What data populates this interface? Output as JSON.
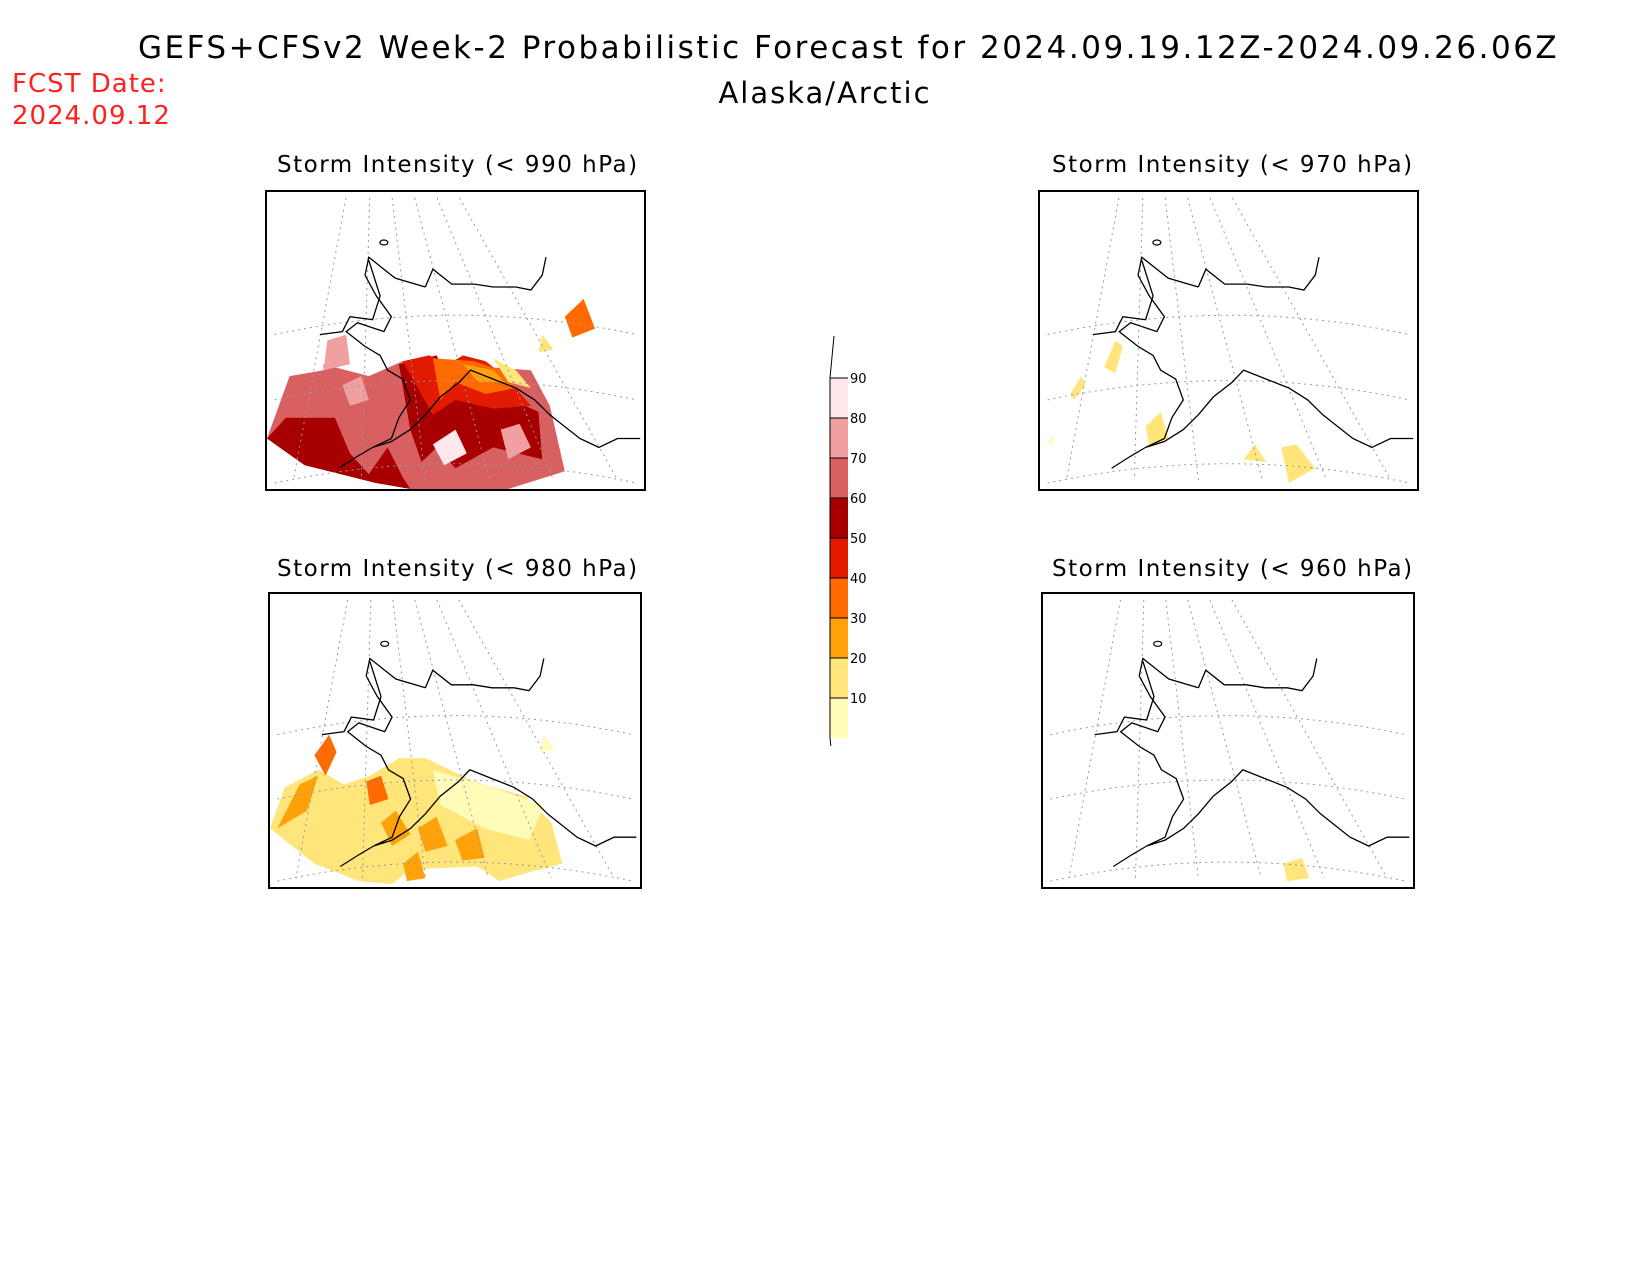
{
  "header": {
    "title": "GEFS+CFSv2 Week-2 Probabilistic Forecast for 2024.09.19.12Z-2024.09.26.06Z",
    "region": "Alaska/Arctic",
    "fcst_label": "FCST Date:",
    "fcst_date": "2024.09.12"
  },
  "panels": [
    {
      "id": "p990",
      "title": "Storm Intensity (< 990 hPa)",
      "shading": "high"
    },
    {
      "id": "p970",
      "title": "Storm Intensity (< 970 hPa)",
      "shading": "sparse"
    },
    {
      "id": "p980",
      "title": "Storm Intensity (< 980 hPa)",
      "shading": "moderate"
    },
    {
      "id": "p960",
      "title": "Storm Intensity (< 960 hPa)",
      "shading": "minimal"
    }
  ],
  "legend": {
    "levels": [
      "10",
      "20",
      "30",
      "40",
      "50",
      "60",
      "70",
      "80",
      "90"
    ],
    "colors": [
      "#fffbb8",
      "#ffe57a",
      "#ffa10a",
      "#ff6a00",
      "#e11a00",
      "#a80000",
      "#d86060",
      "#f0a0a0",
      "#ffe8ec"
    ]
  }
}
